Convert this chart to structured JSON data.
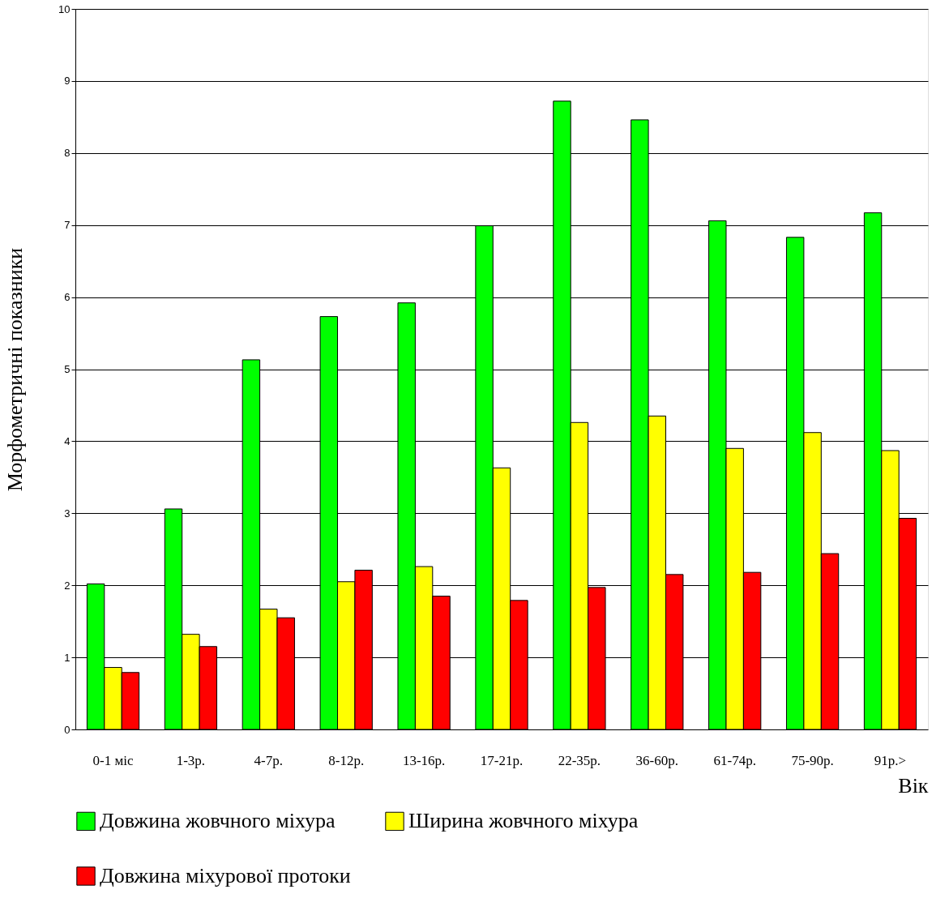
{
  "chart_data": {
    "type": "bar",
    "ylabel": "Морфометричні показники",
    "xlabel": "Вік",
    "categories": [
      "0-1 міс",
      "1-3р.",
      "4-7р.",
      "8-12р.",
      "13-16р.",
      "17-21р.",
      "22-35р.",
      "36-60р.",
      "61-74р.",
      "75-90р.",
      "91р.>"
    ],
    "series": [
      {
        "name": "Довжина жовчного міхура",
        "color": "#00ff00",
        "values": [
          2.02,
          3.06,
          5.13,
          5.73,
          5.92,
          6.99,
          8.72,
          8.46,
          7.06,
          6.83,
          7.17
        ]
      },
      {
        "name": "Ширина жовчного міхура",
        "color": "#ffff00",
        "values": [
          0.86,
          1.32,
          1.67,
          2.05,
          2.26,
          3.63,
          4.26,
          4.35,
          3.9,
          4.12,
          3.87
        ]
      },
      {
        "name": "Довжина міхурової протоки",
        "color": "#ff0000",
        "values": [
          0.79,
          1.15,
          1.55,
          2.21,
          1.85,
          1.79,
          1.97,
          2.15,
          2.18,
          2.44,
          2.93
        ]
      }
    ],
    "ylim": [
      0,
      10
    ],
    "yticks": [
      0,
      1,
      2,
      3,
      4,
      5,
      6,
      7,
      8,
      9,
      10
    ],
    "grid": "y",
    "legend": "bottom"
  }
}
